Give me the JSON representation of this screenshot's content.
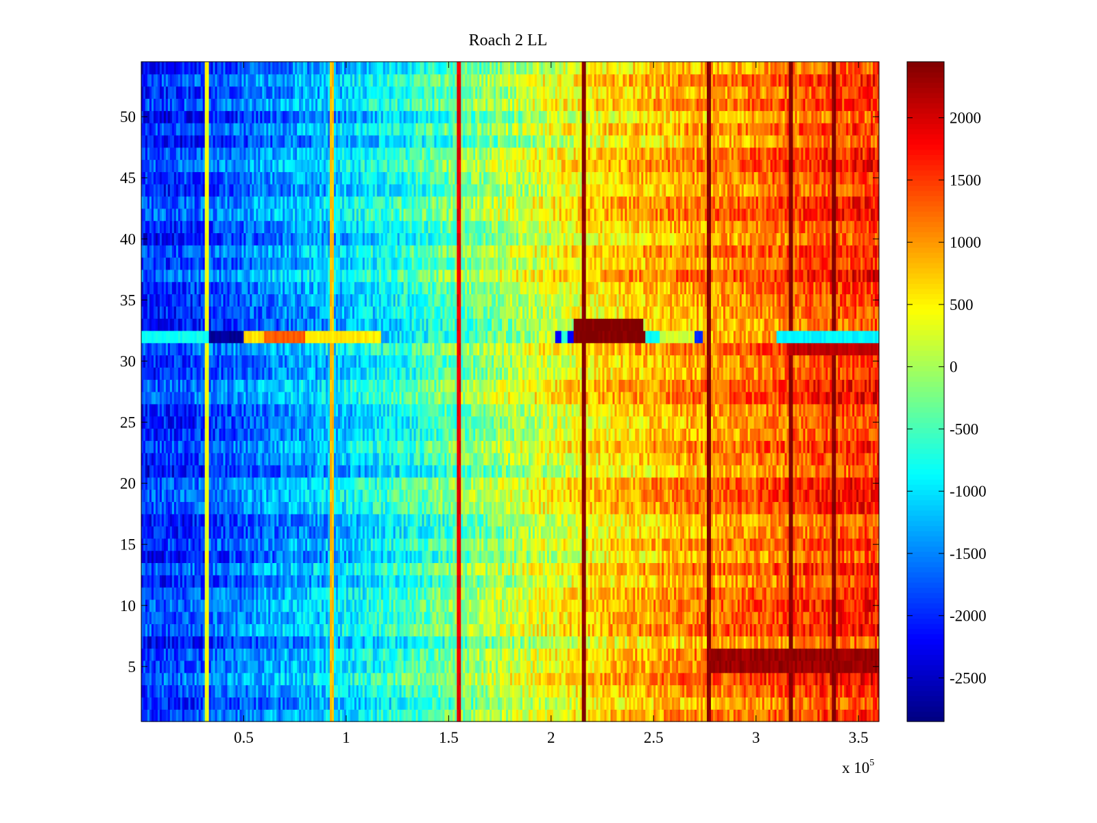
{
  "chart_data": {
    "type": "heatmap",
    "title": "Roach 2 LL",
    "xlabel": "",
    "ylabel": "",
    "x_exponent_label": "x 10",
    "x_exponent_power": "5",
    "xlim": [
      0,
      3.6
    ],
    "ylim": [
      0.5,
      54.5
    ],
    "x_ticks": [
      {
        "value": 0.5,
        "label": "0.5"
      },
      {
        "value": 1,
        "label": "1"
      },
      {
        "value": 1.5,
        "label": "1.5"
      },
      {
        "value": 2,
        "label": "2"
      },
      {
        "value": 2.5,
        "label": "2.5"
      },
      {
        "value": 3,
        "label": "3"
      },
      {
        "value": 3.5,
        "label": "3.5"
      }
    ],
    "y_ticks": [
      {
        "value": 5,
        "label": "5"
      },
      {
        "value": 10,
        "label": "10"
      },
      {
        "value": 15,
        "label": "15"
      },
      {
        "value": 20,
        "label": "20"
      },
      {
        "value": 25,
        "label": "25"
      },
      {
        "value": 30,
        "label": "30"
      },
      {
        "value": 35,
        "label": "35"
      },
      {
        "value": 40,
        "label": "40"
      },
      {
        "value": 45,
        "label": "45"
      },
      {
        "value": 50,
        "label": "50"
      }
    ],
    "rows": 54,
    "columns": 360,
    "colormap": "jet",
    "clim": [
      -2850,
      2450
    ],
    "colorbar_ticks": [
      {
        "value": 2000,
        "label": "2000"
      },
      {
        "value": 1500,
        "label": "1500"
      },
      {
        "value": 1000,
        "label": "1000"
      },
      {
        "value": 500,
        "label": "500"
      },
      {
        "value": 0,
        "label": "0"
      },
      {
        "value": -500,
        "label": "-500"
      },
      {
        "value": -1000,
        "label": "-1000"
      },
      {
        "value": -1500,
        "label": "-1500"
      },
      {
        "value": -2000,
        "label": "-2000"
      },
      {
        "value": -2500,
        "label": "-2500"
      }
    ],
    "trend": {
      "x": [
        0,
        0.3,
        0.6,
        1.0,
        1.3,
        1.6,
        2.0,
        2.3,
        2.6,
        3.0,
        3.3,
        3.6
      ],
      "value": [
        -2000,
        -1850,
        -1500,
        -1100,
        -700,
        -250,
        300,
        650,
        900,
        1150,
        1400,
        1550
      ]
    },
    "vertical_stripes": [
      {
        "x": 0.32,
        "value": 400
      },
      {
        "x": 0.93,
        "value": 800
      },
      {
        "x": 1.55,
        "value": 1900
      },
      {
        "x": 2.16,
        "value": 2450
      },
      {
        "x": 2.77,
        "value": 2450
      },
      {
        "x": 3.17,
        "value": 2450
      },
      {
        "x": 3.38,
        "value": 2450
      }
    ],
    "row_anomalies": [
      {
        "row": 32,
        "segments": [
          {
            "x0": 0,
            "x1": 0.33,
            "value": -800
          },
          {
            "x0": 0.33,
            "x1": 0.5,
            "value": -2700
          },
          {
            "x0": 0.5,
            "x1": 0.6,
            "value": 600
          },
          {
            "x0": 0.6,
            "x1": 0.8,
            "value": 1300
          },
          {
            "x0": 0.8,
            "x1": 1.17,
            "value": 550
          },
          {
            "x0": 2.02,
            "x1": 2.05,
            "value": -2200
          },
          {
            "x0": 2.05,
            "x1": 2.08,
            "value": -700
          },
          {
            "x0": 2.08,
            "x1": 2.11,
            "value": -2300
          },
          {
            "x0": 2.11,
            "x1": 2.46,
            "value": 2450
          },
          {
            "x0": 2.46,
            "x1": 2.53,
            "value": -800
          },
          {
            "x0": 2.53,
            "x1": 2.7,
            "value": 200
          },
          {
            "x0": 2.7,
            "x1": 2.74,
            "value": -2000
          },
          {
            "x0": 3.1,
            "x1": 3.6,
            "value": -900
          }
        ]
      },
      {
        "row": 33,
        "segments": [
          {
            "x0": 2.11,
            "x1": 2.45,
            "value": 2450
          }
        ]
      },
      {
        "row": 31,
        "segments": [
          {
            "x0": 3.15,
            "x1": 3.6,
            "value": 2100
          }
        ]
      },
      {
        "row": 6,
        "segments": [
          {
            "x0": 2.77,
            "x1": 3.6,
            "value": 2300
          }
        ]
      },
      {
        "row": 5,
        "segments": [
          {
            "x0": 2.77,
            "x1": 3.6,
            "value": 2300
          }
        ]
      }
    ]
  }
}
